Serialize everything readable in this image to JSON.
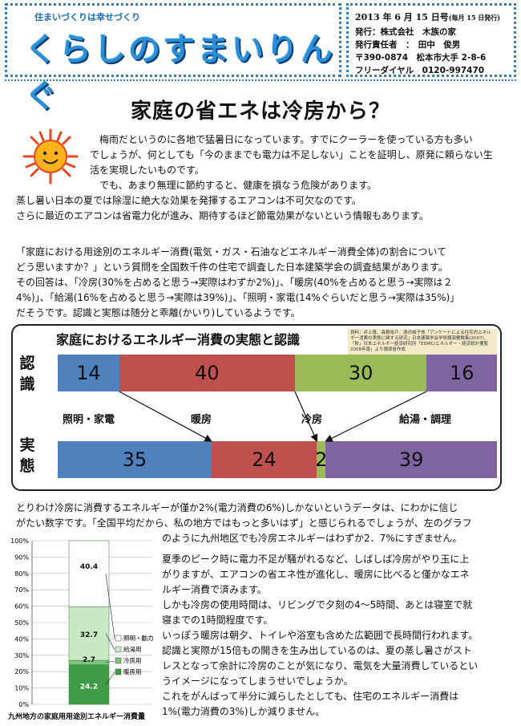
{
  "header": {
    "motto": "住まいづくりは幸せづくり",
    "brand": "くらしのすまいりんぐ",
    "issue_date": "2013 年 6 月 15 日号",
    "issue_note": "(毎月 15 日発行)",
    "publisher": "発行：株式会社　木族の家",
    "editor": "発行責任者　：　田中　俊男",
    "address": "〒390-0874　松本市大手 2-8-6",
    "freedial": "フリーダイヤル　0120-997470"
  },
  "article": {
    "title": "家庭の省エネは冷房から？",
    "intro": [
      "梅雨だというのに各地で猛暑日になっています。すでにクーラーを使っている方も多い",
      "でしょうが、何としても「今のままでも電力は不足しない」ことを証明し、原発に頼らない生",
      "活を実現したいものです。",
      "でも、あまり無理に節約すると、健康を損なう危険があります。",
      "蒸し暑い日本の夏では除湿に絶大な効果を発揮するエアコンは不可欠なのです。",
      "さらに最近のエアコンは省電力化が進み、期待するほど節電効果がないという情報もあります。"
    ],
    "survey": [
      "「家庭における用途別のエネルギー消費(電気・ガス・石油などエネルギー消費全体)の割合について",
      "どう思いますか？」という質問を全国数千件の住宅で調査した日本建築学会の調査結果があります。",
      "その回答は、「冷房(30%を占めると思う→実際はわずか2%)」、「暖房(40%を占めると思う→実際は２",
      "4%)」、「給湯(16%を占めると思う→実際は39%)」、「照明・家電(14%ぐらいだと思う→実際は35%)」",
      "だそうです。認識と実態は随分と乖離(かいり)しているようです。"
    ],
    "after_chart": [
      "とりわけ冷房に消費するエネルギーが僅か2%(電力消費の6%)しかないというデータは、にわかに信じ",
      "がたい数字です。「全国平均だから、私の地方ではもっと多いはず」と感じられるでしょうが、左のグラフ",
      "のように九州地区でも冷房エネルギーはわずか2．7%にすぎません。"
    ],
    "right_column": [
      "夏季のピーク時に電力不足が騒がれるなど、しばしば冷房がやり玉に上",
      "がりますが、エアコンの省エネ性が進化し、暖房に比べると僅かなエネ",
      "ルギー消費で済みます。",
      "しかも冷房の使用時間は、リビングで夕刻の4～5時間、あとは寝室で就",
      "寝までの1時間程度です。",
      "いっぽう暖房は朝夕、トイレや浴室も含めた広範囲で長時間行われます。",
      "認識と実際が15倍もの開きを生み出しているのは、夏の蒸し暑さがスト",
      "レスとなって余計に冷房のことが気になり、電気を大量消費しているとい",
      "うイメージになってしまうせいでしょうか。",
      "これをがんばって半分に減らしたとしても、住宅のエネルギー消費は",
      "1%(電力消費の3%)しか減りません。"
    ]
  },
  "chart_data": [
    {
      "type": "bar",
      "title": "家庭におけるエネルギー消費の実態と認識",
      "source_note": "資料：井上隆、森根裕介、酒井誠子他「アンケートによる住宅内エネルギー消費の実態に関する研究」日本建築学会学術講演梗概集(2007)、「財」日本エネルギー経済研究所「EDMC/エネルギー・経済統計要覧2008年版」より環境省作成",
      "orientation": "horizontal-stacked",
      "row_labels": [
        "認識",
        "実態"
      ],
      "categories": [
        "照明・家電",
        "暖房",
        "冷房",
        "給湯・調理"
      ],
      "colors": [
        "#4f81bd",
        "#c0504d",
        "#9bbb59",
        "#8064a2"
      ],
      "series": [
        {
          "name": "認識",
          "values": [
            14,
            40,
            30,
            16
          ]
        },
        {
          "name": "実態",
          "values": [
            35,
            24,
            2,
            39
          ]
        }
      ],
      "xlim": [
        0,
        100
      ]
    },
    {
      "type": "bar",
      "title": "九州地方の家庭用用途別エネルギー消費量",
      "orientation": "vertical-stacked",
      "y_ticks": [
        "0%",
        "10%",
        "20%",
        "30%",
        "40%",
        "50%",
        "60%",
        "70%",
        "80%",
        "90%",
        "100%"
      ],
      "ylim": [
        0,
        100
      ],
      "series": [
        {
          "name": "暖房用",
          "value": 24.2,
          "color": "#3f9b45"
        },
        {
          "name": "冷房用",
          "value": 2.7,
          "color": "#7cc47f"
        },
        {
          "name": "給湯用",
          "value": 32.7,
          "color": "#c9e8c4"
        },
        {
          "name": "照明・動力",
          "value": 40.4,
          "color": "#ffffff"
        }
      ]
    }
  ]
}
